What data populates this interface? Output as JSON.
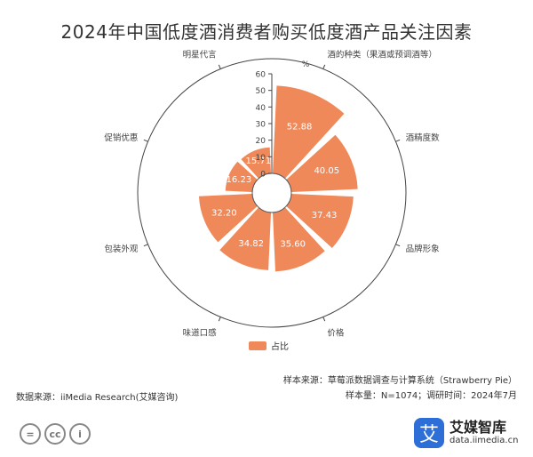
{
  "chart_data": {
    "type": "polar-bar",
    "title": "2024年中国低度酒消费者购买低度酒产品关注因素",
    "unit": "%",
    "radial_ticks": [
      0,
      10,
      20,
      30,
      40,
      50,
      60
    ],
    "rmax": 60,
    "categories": [
      "酒的种类（果酒或预调酒等）",
      "酒精度数",
      "品牌形象",
      "价格",
      "味道口感",
      "包装外观",
      "促销优惠",
      "明星代言"
    ],
    "values": [
      52.88,
      40.05,
      37.43,
      35.6,
      34.82,
      32.2,
      16.23,
      15.71
    ],
    "series": [
      {
        "name": "占比",
        "color": "#f0895a"
      }
    ]
  },
  "footer": {
    "data_source": "数据来源：iiMedia Research(艾媒咨询)",
    "sample_source": "样本来源：草莓派数据调查与计算系统（Strawberry Pie）",
    "sample_size": "样本量：N=1074；调研时间：2024年7月"
  },
  "brand": {
    "logo_char": "艾",
    "name": "艾媒智库",
    "url": "data.iimedia.cn",
    "color": "#2d6fd6"
  },
  "license_icons": [
    "=",
    "cc",
    "i"
  ]
}
